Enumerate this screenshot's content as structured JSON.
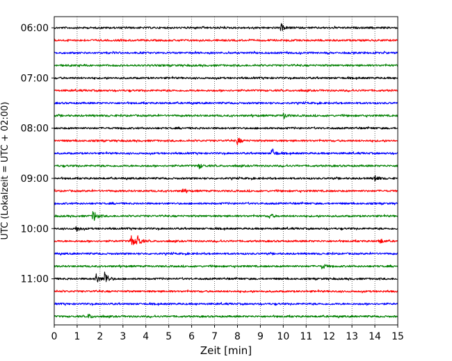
{
  "chart_data": {
    "type": "line",
    "title": "",
    "xlabel": "Zeit  [min]",
    "ylabel": "UTC (Lokalzeit = UTC + 02:00)",
    "xlim": [
      0,
      15
    ],
    "x_ticks": [
      0,
      1,
      2,
      3,
      4,
      5,
      6,
      7,
      8,
      9,
      10,
      11,
      12,
      13,
      14,
      15
    ],
    "y_ticks": [
      {
        "label": "06:00",
        "row": 0
      },
      {
        "label": "07:00",
        "row": 4
      },
      {
        "label": "08:00",
        "row": 8
      },
      {
        "label": "09:00",
        "row": 12
      },
      {
        "label": "10:00",
        "row": 16
      },
      {
        "label": "11:00",
        "row": 20
      }
    ],
    "grid": "vertical dotted",
    "colors": [
      "#000000",
      "#ff0000",
      "#0000ff",
      "#008000"
    ],
    "traces": [
      {
        "start": "06:00",
        "color": "#000000",
        "events": [
          {
            "t": 9.9,
            "amp": 1.0
          }
        ]
      },
      {
        "start": "06:15",
        "color": "#ff0000",
        "events": []
      },
      {
        "start": "06:30",
        "color": "#0000ff",
        "events": []
      },
      {
        "start": "06:45",
        "color": "#008000",
        "events": []
      },
      {
        "start": "07:00",
        "color": "#000000",
        "events": []
      },
      {
        "start": "07:15",
        "color": "#ff0000",
        "events": []
      },
      {
        "start": "07:30",
        "color": "#0000ff",
        "events": []
      },
      {
        "start": "07:45",
        "color": "#008000",
        "events": [
          {
            "t": 10.0,
            "amp": 0.9
          }
        ]
      },
      {
        "start": "08:00",
        "color": "#000000",
        "events": []
      },
      {
        "start": "08:15",
        "color": "#ff0000",
        "events": [
          {
            "t": 8.0,
            "amp": 1.0
          }
        ]
      },
      {
        "start": "08:30",
        "color": "#0000ff",
        "events": [
          {
            "t": 9.5,
            "amp": 1.4
          }
        ]
      },
      {
        "start": "08:45",
        "color": "#008000",
        "events": [
          {
            "t": 6.3,
            "amp": 0.8
          }
        ]
      },
      {
        "start": "09:00",
        "color": "#000000",
        "events": [
          {
            "t": 14.0,
            "amp": 0.9
          }
        ]
      },
      {
        "start": "09:15",
        "color": "#ff0000",
        "events": [
          {
            "t": 5.6,
            "amp": 0.6
          }
        ]
      },
      {
        "start": "09:30",
        "color": "#0000ff",
        "events": []
      },
      {
        "start": "09:45",
        "color": "#008000",
        "events": [
          {
            "t": 1.7,
            "amp": 1.8
          },
          {
            "t": 9.4,
            "amp": 0.7
          }
        ]
      },
      {
        "start": "10:00",
        "color": "#000000",
        "events": [
          {
            "t": 0.95,
            "amp": 0.9
          }
        ]
      },
      {
        "start": "10:15",
        "color": "#ff0000",
        "events": [
          {
            "t": 3.35,
            "amp": 1.8
          },
          {
            "t": 3.6,
            "amp": 2.0
          },
          {
            "t": 14.2,
            "amp": 0.8
          }
        ]
      },
      {
        "start": "10:30",
        "color": "#0000ff",
        "events": []
      },
      {
        "start": "10:45",
        "color": "#008000",
        "events": [
          {
            "t": 11.7,
            "amp": 0.8
          }
        ]
      },
      {
        "start": "11:00",
        "color": "#000000",
        "events": [
          {
            "t": 1.8,
            "amp": 1.6
          },
          {
            "t": 2.2,
            "amp": 2.2
          }
        ]
      },
      {
        "start": "11:15",
        "color": "#ff0000",
        "events": []
      },
      {
        "start": "11:30",
        "color": "#0000ff",
        "events": []
      },
      {
        "start": "11:45",
        "color": "#008000",
        "events": [
          {
            "t": 1.5,
            "amp": 0.6
          }
        ]
      }
    ]
  }
}
